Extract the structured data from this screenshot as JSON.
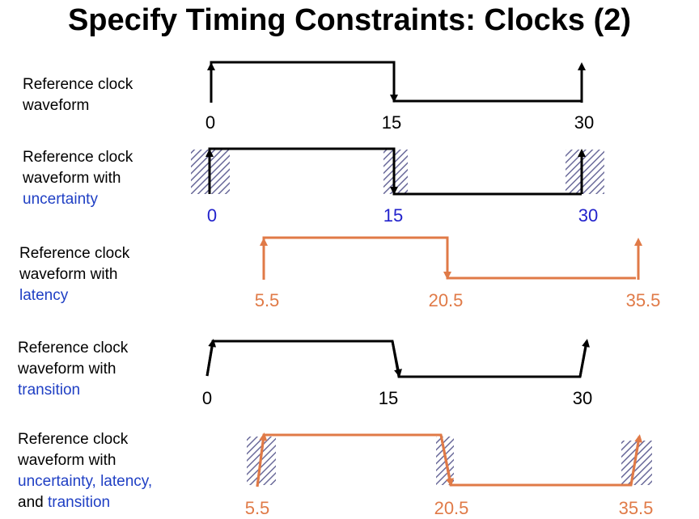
{
  "title": "Specify Timing Constraints:  Clocks (2)",
  "colors": {
    "black": "#000000",
    "blue_text": "#1f3fc4",
    "blue_numbers": "#2222cc",
    "orange": "#e07a47",
    "hatch": "#6a6a9a"
  },
  "rows": [
    {
      "label_lines": [
        "Reference clock",
        "waveform"
      ],
      "highlight": "",
      "ticks": [
        "0",
        "15",
        "30"
      ]
    },
    {
      "label_lines": [
        "Reference clock",
        "waveform with"
      ],
      "highlight": "uncertainty",
      "ticks": [
        "0",
        "15",
        "30"
      ]
    },
    {
      "label_lines": [
        "Reference clock",
        "waveform with"
      ],
      "highlight": "latency",
      "ticks": [
        "5.5",
        "20.5",
        "35.5"
      ]
    },
    {
      "label_lines": [
        "Reference clock",
        "waveform with"
      ],
      "highlight": "transition",
      "ticks": [
        "0",
        "15",
        "30"
      ]
    },
    {
      "label_lines": [
        "Reference clock",
        "waveform with"
      ],
      "highlight": "uncertainty, latency,",
      "tail_prefix": "and ",
      "tail_highlight": "transition",
      "ticks": [
        "5.5",
        "20.5",
        "35.5"
      ]
    }
  ]
}
